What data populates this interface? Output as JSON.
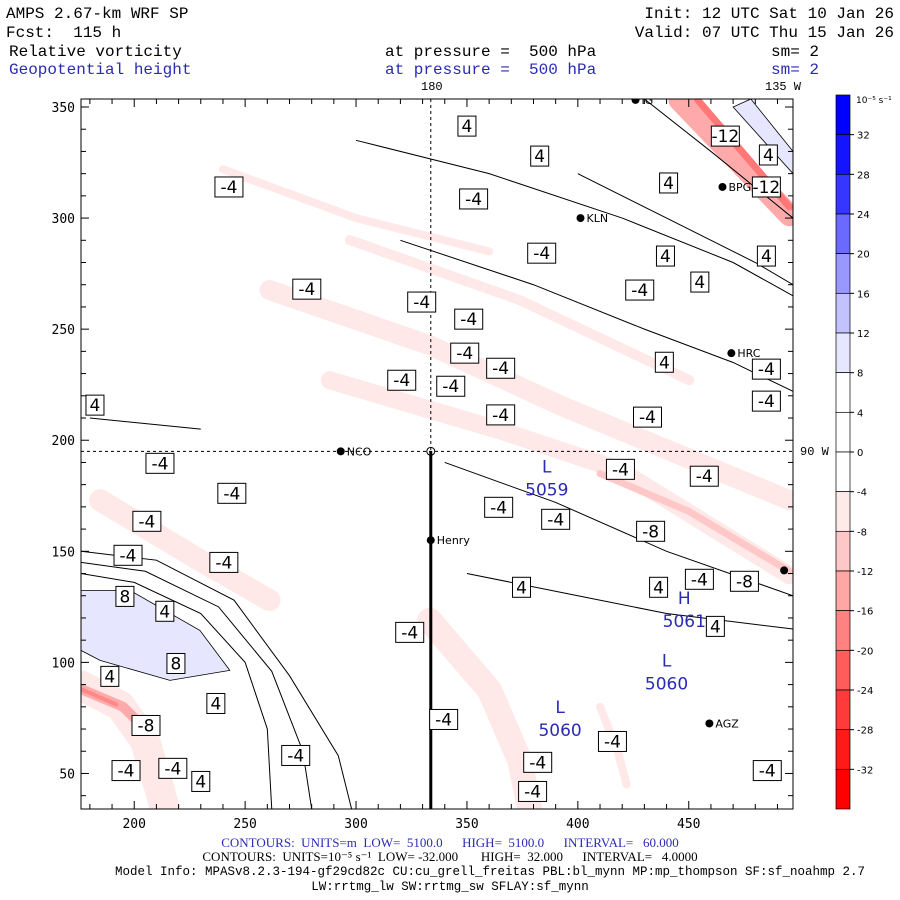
{
  "header": {
    "model": "AMPS 2.67-km WRF SP",
    "init": "Init: 12 UTC Sat 10 Jan 26",
    "fcst": "Fcst:  115 h",
    "valid": "Valid: 07 UTC Thu 15 Jan 26",
    "field1": "Relative vorticity",
    "field1_level": "at pressure =  500 hPa",
    "field1_sm": "sm= 2",
    "field2": "Geopotential height",
    "field2_level": "at pressure =  500 hPa",
    "field2_sm": "sm= 2"
  },
  "meridians": {
    "top_180": "180",
    "top_135w": "135 W",
    "right_90w": "90 W"
  },
  "footer": {
    "contours_height": "CONTOURS:  UNITS=m  LOW=  5100.0      HIGH=  5100.0      INTERVAL=   60.000",
    "contours_vort": "CONTOURS:  UNITS=10⁻⁵ s⁻¹  LOW= -32.000       HIGH=  32.000      INTERVAL=   4.0000",
    "model_info": "Model Info: MPASv8.2.3-194-gf29cd82c CU:cu_grell_freitas PBL:bl_mynn MP:mp_thompson SF:sf_noahmp 2.7",
    "model_info2": "LW:rrtmg_lw SW:rrtmg_sw SFLAY:sf_mynn"
  },
  "colors": {
    "height_contour": "#2a2ab4",
    "label_blue": "#2a2ab4"
  },
  "chart_data": {
    "type": "heatmap",
    "title": "Relative vorticity and Geopotential height at 500 hPa",
    "xlim": [
      176,
      497
    ],
    "ylim": [
      34,
      353.6
    ],
    "xticks": [
      200,
      250,
      300,
      350,
      400,
      450
    ],
    "yticks": [
      50,
      100,
      150,
      200,
      250,
      300,
      350
    ],
    "colorbar": {
      "units": "10⁻⁵ s⁻¹",
      "labels": [
        "32",
        "28",
        "24",
        "20",
        "16",
        "12",
        "8",
        "4",
        "0",
        "-4",
        "-8",
        "-12",
        "-16",
        "-20",
        "-24",
        "-28",
        "-32"
      ],
      "colors": [
        "#0000ff",
        "#1414ff",
        "#3636ff",
        "#6a6aff",
        "#9898ff",
        "#c2c2ff",
        "#e6e6ff",
        "#ffffff",
        "#ffffff",
        "#ffffff",
        "#ffeaea",
        "#ffc8c8",
        "#ffa6a6",
        "#ff8282",
        "#ff5c5c",
        "#ff3a3a",
        "#ff1a1a",
        "#ff0000"
      ]
    },
    "shaded_regions": [
      {
        "color": "#ffe8e8",
        "width": 20,
        "points": [
          [
            261,
            267.6
          ],
          [
            333.2,
            242.8
          ],
          [
            391.8,
            215.8
          ],
          [
            495.4,
            173
          ]
        ]
      },
      {
        "color": "#ffe8e8",
        "width": 18,
        "points": [
          [
            288.2,
            227
          ],
          [
            364.7,
            204.5
          ],
          [
            418.8,
            186.5
          ],
          [
            495.4,
            139.2
          ]
        ]
      },
      {
        "color": "#ffc8c8",
        "width": 7,
        "points": [
          [
            410,
            185
          ],
          [
            450,
            168
          ],
          [
            495.4,
            141
          ]
        ]
      },
      {
        "color": "#ffe8e8",
        "width": 10,
        "points": [
          [
            297.2,
            290.1
          ],
          [
            373.8,
            263.1
          ],
          [
            450.3,
            227
          ]
        ]
      },
      {
        "color": "#ffe8e8",
        "width": 8,
        "points": [
          [
            240,
            322
          ],
          [
            300,
            300
          ],
          [
            360,
            285
          ]
        ]
      },
      {
        "color": "#ffaaaa",
        "width": 22,
        "points": [
          [
            445.8,
            353.2
          ],
          [
            495.4,
            301.3
          ]
        ]
      },
      {
        "color": "#ff7777",
        "width": 7,
        "points": [
          [
            454,
            353.2
          ],
          [
            495.4,
            305
          ]
        ]
      },
      {
        "color": "#ffe8e8",
        "width": 22,
        "points": [
          [
            184.6,
            173
          ],
          [
            229.6,
            146
          ],
          [
            261,
            128
          ]
        ]
      },
      {
        "color": "#ffe8e8",
        "width": 30,
        "points": [
          [
            176,
            89.6
          ],
          [
            193.6,
            80.6
          ],
          [
            204.8,
            64.9
          ],
          [
            211.6,
            42.4
          ],
          [
            213.8,
            33.8
          ]
        ]
      },
      {
        "color": "#ffaaaa",
        "width": 10,
        "points": [
          [
            176,
            88
          ],
          [
            195,
            80
          ],
          [
            205,
            70
          ]
        ]
      },
      {
        "color": "#ff8888",
        "width": 4,
        "points": [
          [
            176,
            88
          ],
          [
            192,
            81
          ]
        ]
      },
      {
        "color": "#ffe8e8",
        "width": 25,
        "points": [
          [
            333.2,
            118.9
          ],
          [
            360.2,
            87.4
          ],
          [
            373.8,
            55.9
          ],
          [
            378.3,
            33.8
          ]
        ]
      },
      {
        "color": "#ffe8e8",
        "width": 8,
        "points": [
          [
            410,
            80
          ],
          [
            418,
            60
          ],
          [
            422,
            45
          ]
        ]
      }
    ],
    "blue_regions": [
      {
        "color": "#e6e6ff",
        "points": [
          [
            176,
            132.4
          ],
          [
            198.1,
            132.4
          ],
          [
            229.6,
            114.4
          ],
          [
            243.1,
            96.4
          ],
          [
            216.1,
            91.9
          ],
          [
            184.6,
            100.9
          ],
          [
            176,
            105.4
          ]
        ]
      },
      {
        "color": "#e6e6ff",
        "points": [
          [
            478,
            353.6
          ],
          [
            497,
            330
          ],
          [
            497,
            320
          ],
          [
            470,
            350
          ]
        ]
      }
    ],
    "contour_lines": [
      [
        [
          176,
          140
        ],
        [
          200,
          136
        ],
        [
          230,
          122
        ],
        [
          250,
          100
        ],
        [
          260,
          70
        ],
        [
          262,
          34
        ]
      ],
      [
        [
          176,
          145
        ],
        [
          205,
          141
        ],
        [
          238,
          125
        ],
        [
          262,
          96
        ],
        [
          276,
          60
        ],
        [
          280,
          34
        ]
      ],
      [
        [
          176,
          150
        ],
        [
          210,
          146
        ],
        [
          245,
          128
        ],
        [
          270,
          94
        ],
        [
          292,
          58
        ],
        [
          298,
          34
        ]
      ],
      [
        [
          300,
          335
        ],
        [
          360,
          320
        ],
        [
          420,
          300
        ],
        [
          470,
          280
        ],
        [
          497,
          265
        ]
      ],
      [
        [
          320,
          290
        ],
        [
          380,
          270
        ],
        [
          430,
          250
        ],
        [
          470,
          235
        ],
        [
          497,
          222
        ]
      ],
      [
        [
          400,
          320
        ],
        [
          440,
          300
        ],
        [
          480,
          280
        ],
        [
          497,
          270
        ]
      ],
      [
        [
          340,
          190
        ],
        [
          390,
          172
        ],
        [
          440,
          150
        ],
        [
          497,
          130
        ]
      ],
      [
        [
          350,
          140
        ],
        [
          400,
          130
        ],
        [
          440,
          122
        ],
        [
          497,
          115
        ]
      ],
      [
        [
          180,
          210
        ],
        [
          230,
          205
        ]
      ],
      [
        [
          430,
          353.6
        ],
        [
          460,
          330
        ],
        [
          497,
          300
        ]
      ]
    ],
    "contour_labels": [
      {
        "v": "4",
        "x": 350,
        "y": 341.4
      },
      {
        "v": "4",
        "x": 382.8,
        "y": 327.9
      },
      {
        "v": "-12",
        "x": 466.5,
        "y": 336.9
      },
      {
        "v": "4",
        "x": 485.9,
        "y": 328.4
      },
      {
        "v": "4",
        "x": 440.9,
        "y": 315.8
      },
      {
        "v": "-12",
        "x": 485,
        "y": 314
      },
      {
        "v": "-4",
        "x": 242.7,
        "y": 314
      },
      {
        "v": "-4",
        "x": 353,
        "y": 308.6
      },
      {
        "v": "-4",
        "x": 383.7,
        "y": 284.2
      },
      {
        "v": "4",
        "x": 439.5,
        "y": 282.9
      },
      {
        "v": "4",
        "x": 485,
        "y": 282.9
      },
      {
        "v": "-4",
        "x": 277.8,
        "y": 268
      },
      {
        "v": "-4",
        "x": 329.6,
        "y": 262.2
      },
      {
        "v": "-4",
        "x": 427.9,
        "y": 267.6
      },
      {
        "v": "4",
        "x": 455,
        "y": 271.2
      },
      {
        "v": "-4",
        "x": 350.8,
        "y": 254.5
      },
      {
        "v": "-4",
        "x": 349,
        "y": 239.2
      },
      {
        "v": "4",
        "x": 439,
        "y": 235.1
      },
      {
        "v": "-4",
        "x": 365.2,
        "y": 232.4
      },
      {
        "v": "-4",
        "x": 320.6,
        "y": 227
      },
      {
        "v": "-4",
        "x": 342.7,
        "y": 224.3
      },
      {
        "v": "-4",
        "x": 485,
        "y": 232
      },
      {
        "v": "4",
        "x": 182.3,
        "y": 215.8
      },
      {
        "v": "-4",
        "x": 365.2,
        "y": 211.4
      },
      {
        "v": "-4",
        "x": 431.4,
        "y": 210.4
      },
      {
        "v": "-4",
        "x": 485,
        "y": 217.6
      },
      {
        "v": "-4",
        "x": 211.6,
        "y": 189.6
      },
      {
        "v": "-4",
        "x": 419.2,
        "y": 186.9
      },
      {
        "v": "-4",
        "x": 457,
        "y": 183.8
      },
      {
        "v": "-4",
        "x": 244,
        "y": 176.1
      },
      {
        "v": "-4",
        "x": 364.3,
        "y": 169.8
      },
      {
        "v": "-4",
        "x": 390,
        "y": 164.4
      },
      {
        "v": "-4",
        "x": 205.7,
        "y": 163.5
      },
      {
        "v": "-8",
        "x": 432.8,
        "y": 159
      },
      {
        "v": "-4",
        "x": 197.2,
        "y": 148.2
      },
      {
        "v": "-4",
        "x": 240.4,
        "y": 145
      },
      {
        "v": "-4",
        "x": 454.8,
        "y": 137.4
      },
      {
        "v": "-8",
        "x": 475.1,
        "y": 136.5
      },
      {
        "v": "4",
        "x": 374.6,
        "y": 133.8
      },
      {
        "v": "4",
        "x": 436.4,
        "y": 133.8
      },
      {
        "v": "8",
        "x": 195.8,
        "y": 129.7
      },
      {
        "v": "4",
        "x": 213.8,
        "y": 123
      },
      {
        "v": "-4",
        "x": 324.2,
        "y": 113.5
      },
      {
        "v": "4",
        "x": 462,
        "y": 116.2
      },
      {
        "v": "4",
        "x": 189,
        "y": 93.7
      },
      {
        "v": "8",
        "x": 218.8,
        "y": 99.5
      },
      {
        "v": "4",
        "x": 236.8,
        "y": 81.5
      },
      {
        "v": "-8",
        "x": 205.3,
        "y": 71.6
      },
      {
        "v": "-4",
        "x": 339.5,
        "y": 74.3
      },
      {
        "v": "-4",
        "x": 415.6,
        "y": 64.4
      },
      {
        "v": "-4",
        "x": 272.8,
        "y": 58.1
      },
      {
        "v": "-4",
        "x": 381.9,
        "y": 55
      },
      {
        "v": "-4",
        "x": 196.3,
        "y": 51.3
      },
      {
        "v": "-4",
        "x": 217.4,
        "y": 52.3
      },
      {
        "v": "4",
        "x": 230,
        "y": 46.4
      },
      {
        "v": "-4",
        "x": 485.4,
        "y": 51.3
      },
      {
        "v": "-4",
        "x": 379.6,
        "y": 41.9
      }
    ],
    "pressure_centers": [
      {
        "type": "L",
        "value": "5059",
        "x": 386,
        "y": 187.3
      },
      {
        "type": "H",
        "value": "5061",
        "x": 448,
        "y": 128
      },
      {
        "type": "L",
        "value": "5060",
        "x": 440,
        "y": 100
      },
      {
        "type": "L",
        "value": "5060",
        "x": 392,
        "y": 79
      }
    ],
    "stations": [
      {
        "name": "NCO",
        "x": 293.1,
        "y": 195
      },
      {
        "name": "Henry",
        "x": 333.7,
        "y": 155
      },
      {
        "name": "KLN",
        "x": 401.2,
        "y": 300
      },
      {
        "name": "BPG",
        "x": 465.2,
        "y": 314
      },
      {
        "name": "HRC",
        "x": 469.2,
        "y": 239.2
      },
      {
        "name": "AGZ",
        "x": 459.3,
        "y": 72.5
      },
      {
        "name": "IG",
        "x": 426,
        "y": 353.2
      },
      {
        "name": "",
        "x": 493,
        "y": 141.4
      }
    ],
    "pole_marker": {
      "x": 333.7,
      "y": 195
    },
    "cross_section": {
      "x": 333.7,
      "y_from": 195,
      "y_to": 34
    }
  }
}
